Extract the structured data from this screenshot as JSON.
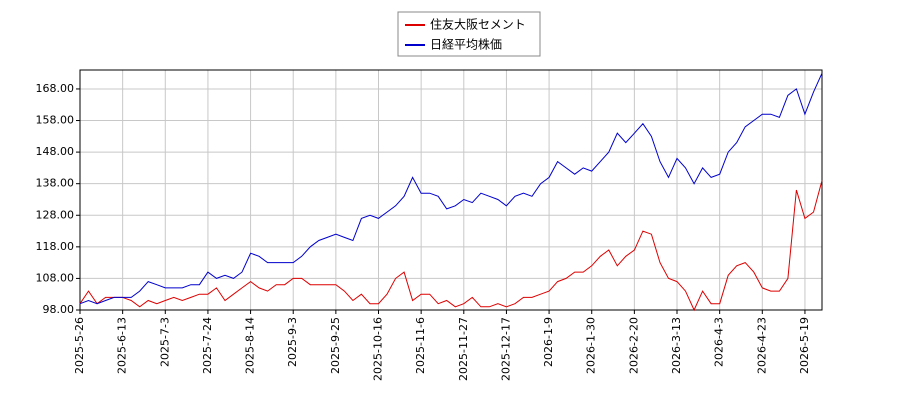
{
  "chart_data": {
    "type": "line",
    "categories": [
      "2025-5-26",
      null,
      null,
      null,
      null,
      "2025-6-13",
      null,
      null,
      null,
      null,
      "2025-7-3",
      null,
      null,
      null,
      null,
      "2025-7-24",
      null,
      null,
      null,
      null,
      "2025-8-14",
      null,
      null,
      null,
      null,
      "2025-9-3",
      null,
      null,
      null,
      null,
      "2025-9-25",
      null,
      null,
      null,
      null,
      "2025-10-16",
      null,
      null,
      null,
      null,
      "2025-11-6",
      null,
      null,
      null,
      null,
      "2025-11-27",
      null,
      null,
      null,
      null,
      "2025-12-17",
      null,
      null,
      null,
      null,
      "2026-1-9",
      null,
      null,
      null,
      null,
      "2026-1-30",
      null,
      null,
      null,
      null,
      "2026-2-20",
      null,
      null,
      null,
      null,
      "2026-3-13",
      null,
      null,
      null,
      null,
      "2026-4-3",
      null,
      null,
      null,
      null,
      "2026-4-23",
      null,
      null,
      null,
      null,
      "2026-5-19",
      null,
      null
    ],
    "series": [
      {
        "name": "住友大阪セメント",
        "color": "#dd0000",
        "values": [
          100,
          104,
          100,
          102,
          102,
          102,
          101,
          99,
          101,
          100,
          101,
          102,
          101,
          102,
          103,
          103,
          105,
          101,
          103,
          105,
          107,
          105,
          104,
          106,
          106,
          108,
          108,
          106,
          106,
          106,
          106,
          104,
          101,
          103,
          100,
          100,
          103,
          108,
          110,
          101,
          103,
          103,
          100,
          101,
          99,
          100,
          102,
          99,
          99,
          100,
          99,
          100,
          102,
          102,
          103,
          104,
          107,
          108,
          110,
          110,
          112,
          115,
          117,
          112,
          115,
          117,
          123,
          122,
          113,
          108,
          107,
          104,
          98,
          104,
          100,
          100,
          109,
          112,
          113,
          110,
          105,
          104,
          104,
          108,
          136,
          127,
          129,
          139
        ]
      },
      {
        "name": "日経平均株価",
        "color": "#0000cc",
        "values": [
          100,
          101,
          100,
          101,
          102,
          102,
          102,
          104,
          107,
          106,
          105,
          105,
          105,
          106,
          106,
          110,
          108,
          109,
          108,
          110,
          116,
          115,
          113,
          113,
          113,
          113,
          115,
          118,
          120,
          121,
          122,
          121,
          120,
          127,
          128,
          127,
          129,
          131,
          134,
          140,
          135,
          135,
          134,
          130,
          131,
          133,
          132,
          135,
          134,
          133,
          131,
          134,
          135,
          134,
          138,
          140,
          145,
          143,
          141,
          143,
          142,
          145,
          148,
          154,
          151,
          154,
          157,
          153,
          145,
          140,
          146,
          143,
          138,
          143,
          140,
          141,
          148,
          151,
          156,
          158,
          160,
          160,
          159,
          166,
          168,
          160,
          167,
          173
        ]
      }
    ],
    "ylim": [
      98,
      174
    ],
    "yticks": [
      {
        "value": 98,
        "label": "98.00"
      },
      {
        "value": 108,
        "label": "108.00"
      },
      {
        "value": 118,
        "label": "118.00"
      },
      {
        "value": 128,
        "label": "128.00"
      },
      {
        "value": 138,
        "label": "138.00"
      },
      {
        "value": 148,
        "label": "148.00"
      },
      {
        "value": 158,
        "label": "158.00"
      },
      {
        "value": 168,
        "label": "168.00"
      }
    ],
    "grid": true
  }
}
